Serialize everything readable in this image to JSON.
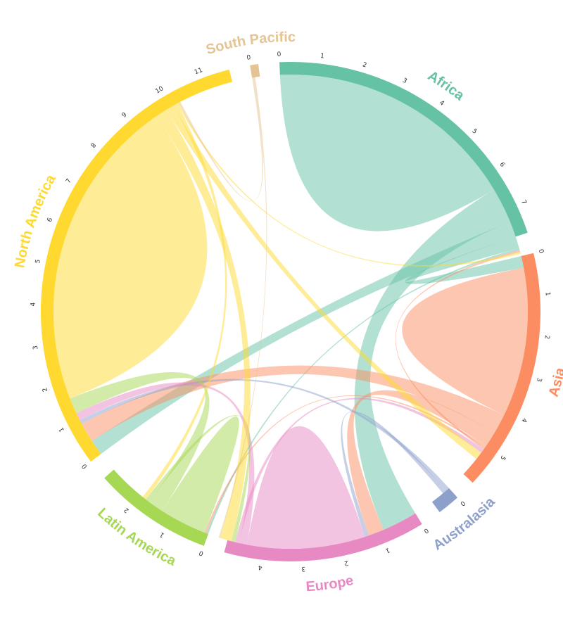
{
  "chart_data": {
    "type": "chord",
    "title": "",
    "regions": [
      {
        "name": "Africa",
        "color": "#66c2a5",
        "total": 7.7,
        "ticks": [
          0,
          1,
          2,
          3,
          4,
          5,
          6,
          7
        ]
      },
      {
        "name": "Asia",
        "color": "#fc8d62",
        "total": 5.9,
        "ticks": [
          0,
          1,
          2,
          3,
          4,
          5
        ]
      },
      {
        "name": "Australasia",
        "color": "#8da0cb",
        "total": 0.55,
        "ticks": [
          0
        ]
      },
      {
        "name": "Europe",
        "color": "#e78ac3",
        "total": 4.9,
        "ticks": [
          0,
          1,
          2,
          3,
          4
        ]
      },
      {
        "name": "Latin America",
        "color": "#a6d854",
        "total": 2.9,
        "ticks": [
          0,
          1,
          2
        ]
      },
      {
        "name": "North America",
        "color": "#ffd92f",
        "total": 11.7,
        "ticks": [
          0,
          1,
          2,
          3,
          4,
          5,
          6,
          7,
          8,
          9,
          10,
          11
        ]
      },
      {
        "name": "South Pacific",
        "color": "#e5c494",
        "total": 0.2,
        "ticks": [
          0
        ]
      }
    ],
    "flows": [
      {
        "from": "Africa",
        "to": "Africa",
        "value": 3.2
      },
      {
        "from": "Africa",
        "to": "Europe",
        "value": 0.9
      },
      {
        "from": "Africa",
        "to": "North America",
        "value": 0.4
      },
      {
        "from": "Africa",
        "to": "Asia",
        "value": 0.3
      },
      {
        "from": "Africa",
        "to": "Latin America",
        "value": 0.05
      },
      {
        "from": "Asia",
        "to": "Asia",
        "value": 1.9
      },
      {
        "from": "Asia",
        "to": "North America",
        "value": 0.5
      },
      {
        "from": "Asia",
        "to": "Europe",
        "value": 0.4
      },
      {
        "from": "Asia",
        "to": "Latin America",
        "value": 0.05
      },
      {
        "from": "Asia",
        "to": "Africa",
        "value": 0.05
      },
      {
        "from": "Australasia",
        "to": "North America",
        "value": 0.1
      },
      {
        "from": "Australasia",
        "to": "Europe",
        "value": 0.1
      },
      {
        "from": "Europe",
        "to": "Europe",
        "value": 1.5
      },
      {
        "from": "Europe",
        "to": "North America",
        "value": 0.2
      },
      {
        "from": "Europe",
        "to": "Asia",
        "value": 0.1
      },
      {
        "from": "Latin America",
        "to": "Latin America",
        "value": 0.6
      },
      {
        "from": "Latin America",
        "to": "North America",
        "value": 0.4
      },
      {
        "from": "Latin America",
        "to": "Europe",
        "value": 0.1
      },
      {
        "from": "North America",
        "to": "North America",
        "value": 4.0
      },
      {
        "from": "North America",
        "to": "Europe",
        "value": 0.3
      },
      {
        "from": "North America",
        "to": "Asia",
        "value": 0.2
      },
      {
        "from": "North America",
        "to": "Latin America",
        "value": 0.1
      },
      {
        "from": "North America",
        "to": "Africa",
        "value": 0.05
      },
      {
        "from": "South Pacific",
        "to": "North America",
        "value": 0.05
      },
      {
        "from": "South Pacific",
        "to": "Europe",
        "value": 0.03
      }
    ]
  }
}
